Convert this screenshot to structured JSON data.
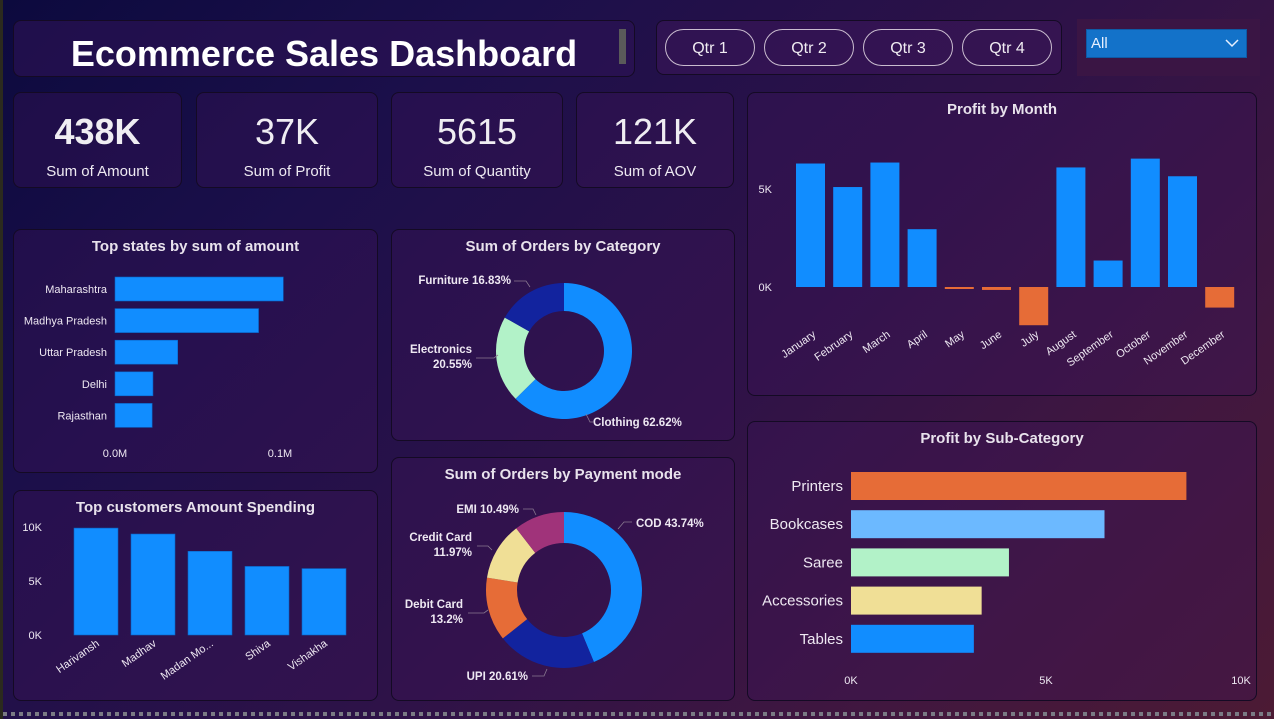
{
  "header": {
    "title": "Ecommerce Sales Dashboard"
  },
  "quarter_slicer": {
    "buttons": [
      "Qtr 1",
      "Qtr 2",
      "Qtr 3",
      "Qtr 4"
    ]
  },
  "dropdown_slicer": {
    "selected": "All"
  },
  "kpis": [
    {
      "value": "438K",
      "label": "Sum of Amount"
    },
    {
      "value": "37K",
      "label": "Sum of Profit"
    },
    {
      "value": "5615",
      "label": "Sum of Quantity"
    },
    {
      "value": "121K",
      "label": "Sum of AOV"
    }
  ],
  "colors": {
    "blue": "#118dff",
    "navy": "#12239e",
    "mint": "#b2f2c8",
    "orange": "#e66c37",
    "light_blue": "#6cb9ff",
    "sand": "#f0df96",
    "plum": "#a0337a"
  },
  "chart_data": [
    {
      "id": "top_states",
      "type": "bar",
      "orientation": "horizontal",
      "title": "Top states by sum of amount",
      "categories": [
        "Maharashtra",
        "Madhya Pradesh",
        "Uttar Pradesh",
        "Delhi",
        "Rajasthan"
      ],
      "values": [
        102000,
        87000,
        38000,
        23000,
        22500
      ],
      "xticks": [
        "0.0M",
        "0.1M"
      ],
      "xlim": [
        0,
        100000
      ],
      "grid": false
    },
    {
      "id": "top_customers",
      "type": "bar",
      "title": "Top customers Amount Spending",
      "categories": [
        "Harivansh",
        "Madhav",
        "Madan Mo...",
        "Shiva",
        "Vishakha"
      ],
      "values": [
        9900,
        9350,
        7750,
        6350,
        6150
      ],
      "yticks": [
        "0K",
        "5K",
        "10K"
      ],
      "ylim": [
        0,
        10000
      ],
      "grid": false
    },
    {
      "id": "orders_by_category",
      "type": "pie",
      "donut": true,
      "title": "Sum of Orders by Category",
      "labels": [
        "Clothing",
        "Electronics",
        "Furniture"
      ],
      "values": [
        62.62,
        20.55,
        16.83
      ],
      "display_labels": [
        "Clothing 62.62%",
        "Electronics 20.55%",
        "Furniture 16.83%"
      ],
      "colors": [
        "#118dff",
        "#b2f2c8",
        "#12239e"
      ]
    },
    {
      "id": "orders_by_payment",
      "type": "pie",
      "donut": true,
      "title": "Sum of Orders by Payment mode",
      "labels": [
        "COD",
        "UPI",
        "Debit Card",
        "Credit Card",
        "EMI"
      ],
      "values": [
        43.74,
        20.61,
        13.2,
        11.97,
        10.49
      ],
      "display_labels": [
        "COD 43.74%",
        "UPI 20.61%",
        "Debit Card 13.2%",
        "Credit Card 11.97%",
        "EMI 10.49%"
      ],
      "colors": [
        "#118dff",
        "#12239e",
        "#e66c37",
        "#f0df96",
        "#a0337a"
      ]
    },
    {
      "id": "profit_by_month",
      "type": "bar",
      "title": "Profit by Month",
      "categories": [
        "January",
        "February",
        "March",
        "April",
        "May",
        "June",
        "July",
        "August",
        "September",
        "October",
        "November",
        "December"
      ],
      "values": [
        6300,
        5100,
        6350,
        2950,
        -100,
        -150,
        -1950,
        6100,
        1350,
        6550,
        5650,
        -1050
      ],
      "yticks": [
        "0K",
        "5K"
      ],
      "ylim": [
        -2500,
        8000
      ],
      "positive_color": "#118dff",
      "negative_color": "#e66c37",
      "grid": false
    },
    {
      "id": "profit_by_subcategory",
      "type": "bar",
      "orientation": "horizontal",
      "title": "Profit by Sub-Category",
      "categories": [
        "Printers",
        "Bookcases",
        "Saree",
        "Accessories",
        "Tables"
      ],
      "values": [
        8600,
        6500,
        4050,
        3350,
        3150
      ],
      "colors": [
        "#e66c37",
        "#6cb9ff",
        "#b2f2c8",
        "#f0df96",
        "#118dff"
      ],
      "xticks": [
        "0K",
        "5K",
        "10K"
      ],
      "xlim": [
        0,
        10000
      ],
      "grid": false
    }
  ]
}
